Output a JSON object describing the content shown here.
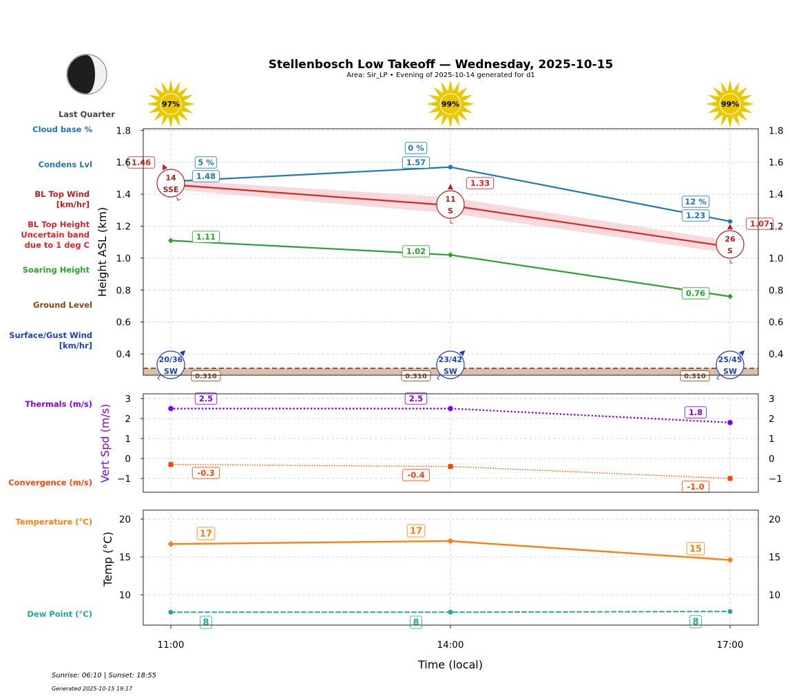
{
  "header": {
    "title": "Stellenbosch Low Takeoff — Wednesday, 2025-10-15",
    "subtitle": "Area: Sir_LP • Evening of 2025-10-14 generated for d1",
    "moon_phase": "Last Quarter",
    "moon_illumination": 0.5
  },
  "footer": {
    "sun_times": "Sunrise: 06:10 | Sunset: 18:55",
    "generated": "Generated 2025-10-15 19:17"
  },
  "colors": {
    "cloud": "#1f77b4",
    "bl_top": "#d62728",
    "bl_wind": "#b22222",
    "soaring": "#2ca02c",
    "ground": "#8b4513",
    "ground_fill": "#d9bfae",
    "surface_wind": "#1f3fbf",
    "thermals": "#7f00ff",
    "convergence": "#ff4500",
    "temperature": "#ff7f0e",
    "dewpoint": "#26a69a",
    "sun": "#e6c700"
  },
  "chart_data": [
    {
      "type": "line",
      "panel": "heights",
      "ylabel": "Height ASL (km)",
      "ylim": [
        0.267,
        1.81
      ],
      "yticks": [
        "0.4",
        "0.6",
        "0.8",
        "1.0",
        "1.2",
        "1.4",
        "1.6",
        "1.8"
      ],
      "ytick_values": [
        0.4,
        0.6,
        0.8,
        1.0,
        1.2,
        1.4,
        1.6,
        1.8
      ],
      "x": [
        "11:00",
        "14:00",
        "17:00"
      ],
      "grid": true,
      "side_labels": {
        "cloud_base": "Cloud base %",
        "condens": "Condens Lvl",
        "bl_wind": [
          "BL Top Wind",
          "[km/hr]"
        ],
        "bl_height": [
          "BL Top Height",
          "Uncertain band",
          "due to 1 deg C"
        ],
        "soaring": "Soaring Height",
        "ground": "Ground Level",
        "surface_wind": [
          "Surface/Gust Wind",
          "[km/hr]"
        ]
      },
      "sun_pct": [
        "97%",
        "99%",
        "99%"
      ],
      "sun_values": [
        97,
        99,
        99
      ],
      "series": [
        {
          "name": "Condens Lvl",
          "values": [
            1.48,
            1.57,
            1.23
          ],
          "labels": [
            "1.48",
            "1.57",
            "1.23"
          ]
        },
        {
          "name": "Cloud base %",
          "labels": [
            "5 %",
            "0 %",
            "12 %"
          ],
          "values": [
            5,
            0,
            12
          ]
        },
        {
          "name": "BL Top Height",
          "values": [
            1.46,
            1.33,
            1.07
          ],
          "labels": [
            "1.46",
            "1.33",
            "1.07"
          ],
          "band_low": [
            1.43,
            1.28,
            1.03
          ],
          "band_high": [
            1.49,
            1.38,
            1.11
          ]
        },
        {
          "name": "BL Top Wind",
          "speed": [
            "14",
            "11",
            "26"
          ],
          "dir": [
            "SSE",
            "S",
            "S"
          ],
          "dir_deg": [
            157.5,
            180,
            180
          ]
        },
        {
          "name": "Soaring Height",
          "values": [
            1.11,
            1.02,
            0.76
          ],
          "labels": [
            "1.11",
            "1.02",
            "0.76"
          ]
        },
        {
          "name": "Ground Level",
          "values": [
            0.31,
            0.31,
            0.31
          ],
          "labels": [
            "0.310",
            "0.310",
            "0.310"
          ]
        },
        {
          "name": "Surface/Gust Wind",
          "speed": [
            "20/36",
            "23/42",
            "25/45"
          ],
          "dir": [
            "SW",
            "SW",
            "SW"
          ],
          "dir_deg": [
            225,
            225,
            225
          ]
        }
      ]
    },
    {
      "type": "line",
      "panel": "vertical-speed",
      "ylabel": "Vert Spd (m/s)",
      "ylim": [
        -1.69,
        3.24
      ],
      "yticks": [
        "−1",
        "0",
        "1",
        "2",
        "3"
      ],
      "ytick_values": [
        -1,
        0,
        1,
        2,
        3
      ],
      "x": [
        "11:00",
        "14:00",
        "17:00"
      ],
      "grid": true,
      "side_labels": {
        "thermals": "Thermals (m/s)",
        "convergence": "Convergence (m/s)"
      },
      "series": [
        {
          "name": "Thermals (m/s)",
          "values": [
            2.5,
            2.5,
            1.8
          ],
          "labels": [
            "2.5",
            "2.5",
            "1.8"
          ]
        },
        {
          "name": "Convergence (m/s)",
          "values": [
            -0.3,
            -0.4,
            -1.0
          ],
          "labels": [
            "-0.3",
            "-0.4",
            "-1.0"
          ]
        }
      ]
    },
    {
      "type": "line",
      "panel": "temperature",
      "ylabel": "Temp (°C)",
      "xlabel": "Time (local)",
      "ylim": [
        6.0,
        21.18
      ],
      "yticks": [
        "10",
        "15",
        "20"
      ],
      "ytick_values": [
        10,
        15,
        20
      ],
      "x": [
        "11:00",
        "14:00",
        "17:00"
      ],
      "grid": true,
      "side_labels": {
        "temperature": "Temperature (°C)",
        "dewpoint": "Dew Point (°C)"
      },
      "series": [
        {
          "name": "Temperature (°C)",
          "values": [
            16.7,
            17.1,
            14.6
          ],
          "labels": [
            "17",
            "17",
            "15"
          ]
        },
        {
          "name": "Dew Point (°C)",
          "values": [
            7.7,
            7.7,
            7.8
          ],
          "labels": [
            "8",
            "8",
            "8"
          ]
        }
      ]
    }
  ]
}
